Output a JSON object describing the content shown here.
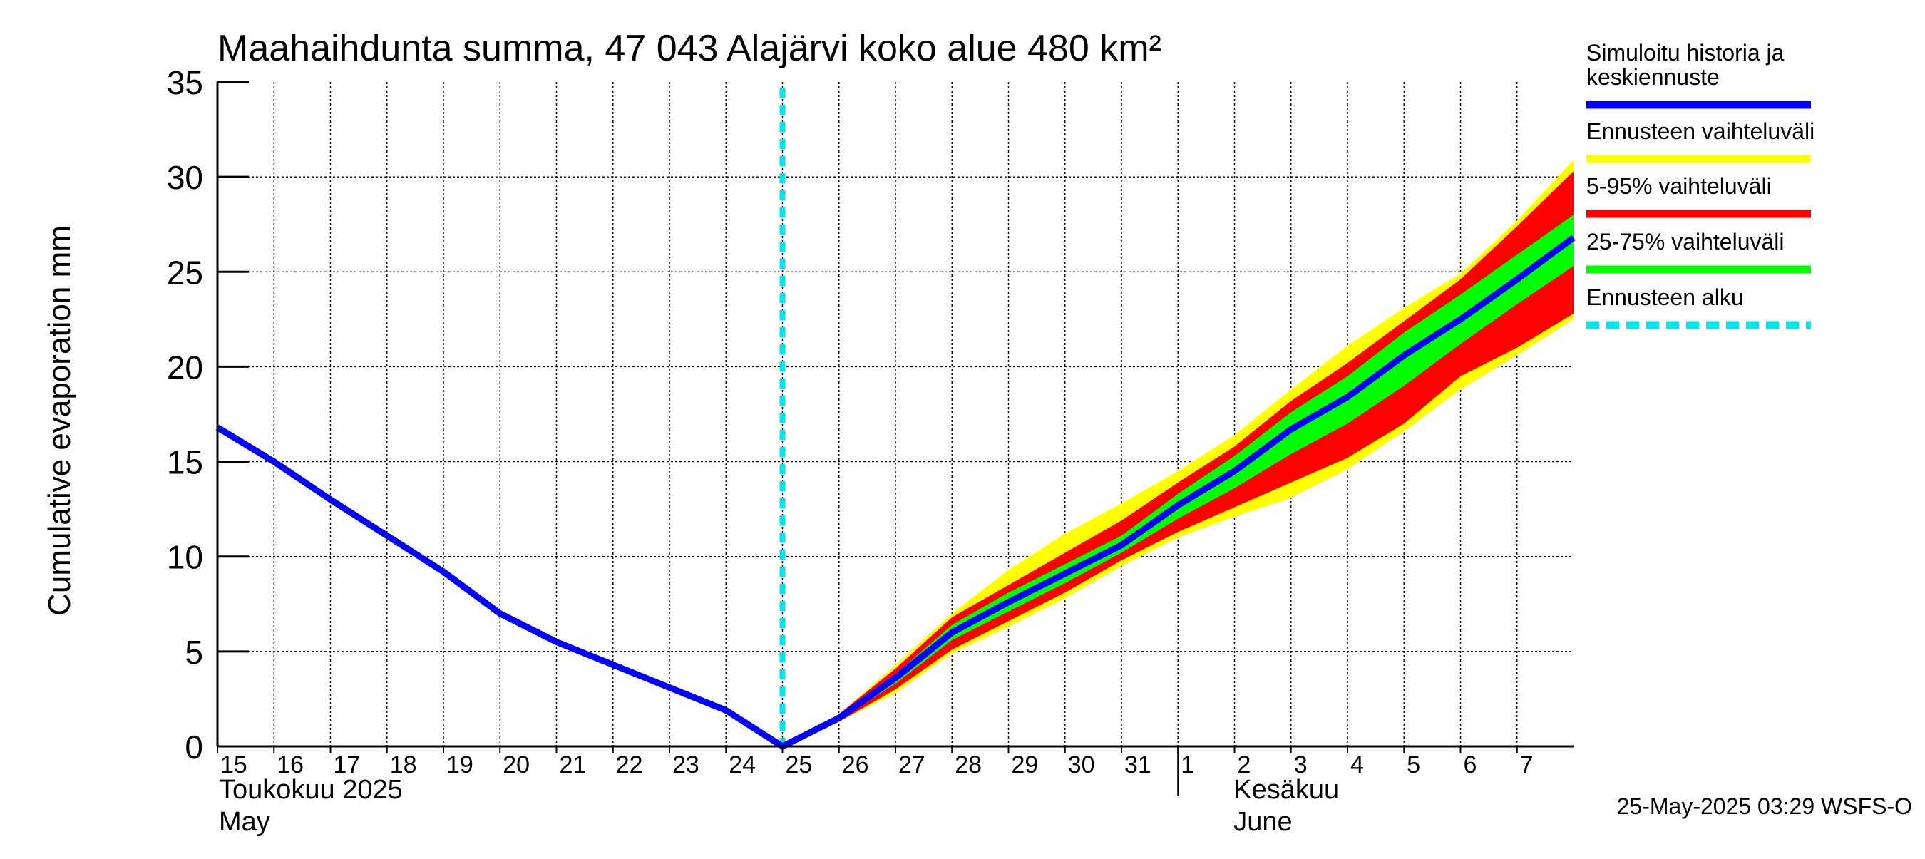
{
  "chart_data": {
    "type": "area",
    "title": "Maahaihdunta summa, 47 043 Alajärvi koko alue 480 km²",
    "ylabel": "Cumulative evaporation   mm",
    "ylim": [
      0,
      35
    ],
    "yticks": [
      0,
      5,
      10,
      15,
      20,
      25,
      30,
      35
    ],
    "xlim": [
      "2025-05-15",
      "2025-06-08"
    ],
    "x_day_labels": [
      "15",
      "16",
      "17",
      "18",
      "19",
      "20",
      "21",
      "22",
      "23",
      "24",
      "25",
      "26",
      "27",
      "28",
      "29",
      "30",
      "31",
      "1",
      "2",
      "3",
      "4",
      "5",
      "6",
      "7"
    ],
    "month_labels": [
      {
        "line1": "Toukokuu  2025",
        "line2": "May",
        "start": "2025-05-15"
      },
      {
        "line1": "Kesäkuu",
        "line2": "June",
        "start": "2025-06-01"
      }
    ],
    "grid": true,
    "forecast_start": "2025-05-25",
    "series": [
      {
        "name": "Simuloitu historia ja keskiennuste",
        "color": "#0000ff",
        "x": [
          "2025-05-15",
          "2025-05-16",
          "2025-05-17",
          "2025-05-18",
          "2025-05-19",
          "2025-05-20",
          "2025-05-21",
          "2025-05-22",
          "2025-05-23",
          "2025-05-24",
          "2025-05-25",
          "2025-05-26",
          "2025-05-27",
          "2025-05-28",
          "2025-05-29",
          "2025-05-30",
          "2025-05-31",
          "2025-06-01",
          "2025-06-02",
          "2025-06-03",
          "2025-06-04",
          "2025-06-05",
          "2025-06-06",
          "2025-06-07",
          "2025-06-08"
        ],
        "values": [
          16.8,
          15.0,
          13.0,
          11.1,
          9.2,
          7.0,
          5.5,
          4.3,
          3.1,
          1.9,
          0.0,
          1.5,
          3.6,
          6.0,
          7.6,
          9.1,
          10.6,
          12.7,
          14.5,
          16.7,
          18.4,
          20.6,
          22.5,
          24.6,
          26.8
        ]
      },
      {
        "name": "Ennusteen vaihteluväli",
        "color": "#ffff00",
        "x": [
          "2025-05-25",
          "2025-05-26",
          "2025-05-27",
          "2025-05-28",
          "2025-05-29",
          "2025-05-30",
          "2025-05-31",
          "2025-06-01",
          "2025-06-02",
          "2025-06-03",
          "2025-06-04",
          "2025-06-05",
          "2025-06-06",
          "2025-06-07",
          "2025-06-08"
        ],
        "lower": [
          0.0,
          1.3,
          2.8,
          4.9,
          6.3,
          7.8,
          9.5,
          11.0,
          12.1,
          13.1,
          14.6,
          16.6,
          18.8,
          20.6,
          22.5
        ],
        "upper": [
          0.0,
          1.7,
          4.3,
          7.0,
          9.3,
          11.2,
          12.8,
          14.5,
          16.4,
          18.8,
          21.1,
          23.1,
          24.9,
          27.7,
          30.9
        ]
      },
      {
        "name": "5-95% vaihteluväli",
        "color": "#ff0000",
        "x": [
          "2025-05-25",
          "2025-05-26",
          "2025-05-27",
          "2025-05-28",
          "2025-05-29",
          "2025-05-30",
          "2025-05-31",
          "2025-06-01",
          "2025-06-02",
          "2025-06-03",
          "2025-06-04",
          "2025-06-05",
          "2025-06-06",
          "2025-06-07",
          "2025-06-08"
        ],
        "lower": [
          0.0,
          1.3,
          3.0,
          5.1,
          6.6,
          8.1,
          9.8,
          11.3,
          12.6,
          13.9,
          15.2,
          17.0,
          19.5,
          21.0,
          22.8
        ],
        "upper": [
          0.0,
          1.7,
          4.1,
          6.8,
          8.5,
          10.2,
          11.9,
          13.9,
          15.8,
          18.2,
          20.2,
          22.4,
          24.6,
          27.4,
          30.3
        ]
      },
      {
        "name": "25-75% vaihteluväli",
        "color": "#00ff00",
        "x": [
          "2025-05-25",
          "2025-05-26",
          "2025-05-27",
          "2025-05-28",
          "2025-05-29",
          "2025-05-30",
          "2025-05-31",
          "2025-06-01",
          "2025-06-02",
          "2025-06-03",
          "2025-06-04",
          "2025-06-05",
          "2025-06-06",
          "2025-06-07",
          "2025-06-08"
        ],
        "lower": [
          0.0,
          1.4,
          3.3,
          5.6,
          7.1,
          8.6,
          10.2,
          12.0,
          13.6,
          15.4,
          17.0,
          19.0,
          21.2,
          23.3,
          25.3
        ],
        "upper": [
          0.0,
          1.6,
          3.8,
          6.4,
          8.1,
          9.6,
          11.1,
          13.3,
          15.3,
          17.6,
          19.5,
          21.8,
          23.8,
          25.9,
          28.0
        ]
      },
      {
        "name": "Ennusteen alku",
        "color": "#00e5ee",
        "x": [
          "2025-05-25"
        ]
      }
    ]
  },
  "footer": {
    "timestamp": "25-May-2025 03:29 WSFS-O"
  }
}
